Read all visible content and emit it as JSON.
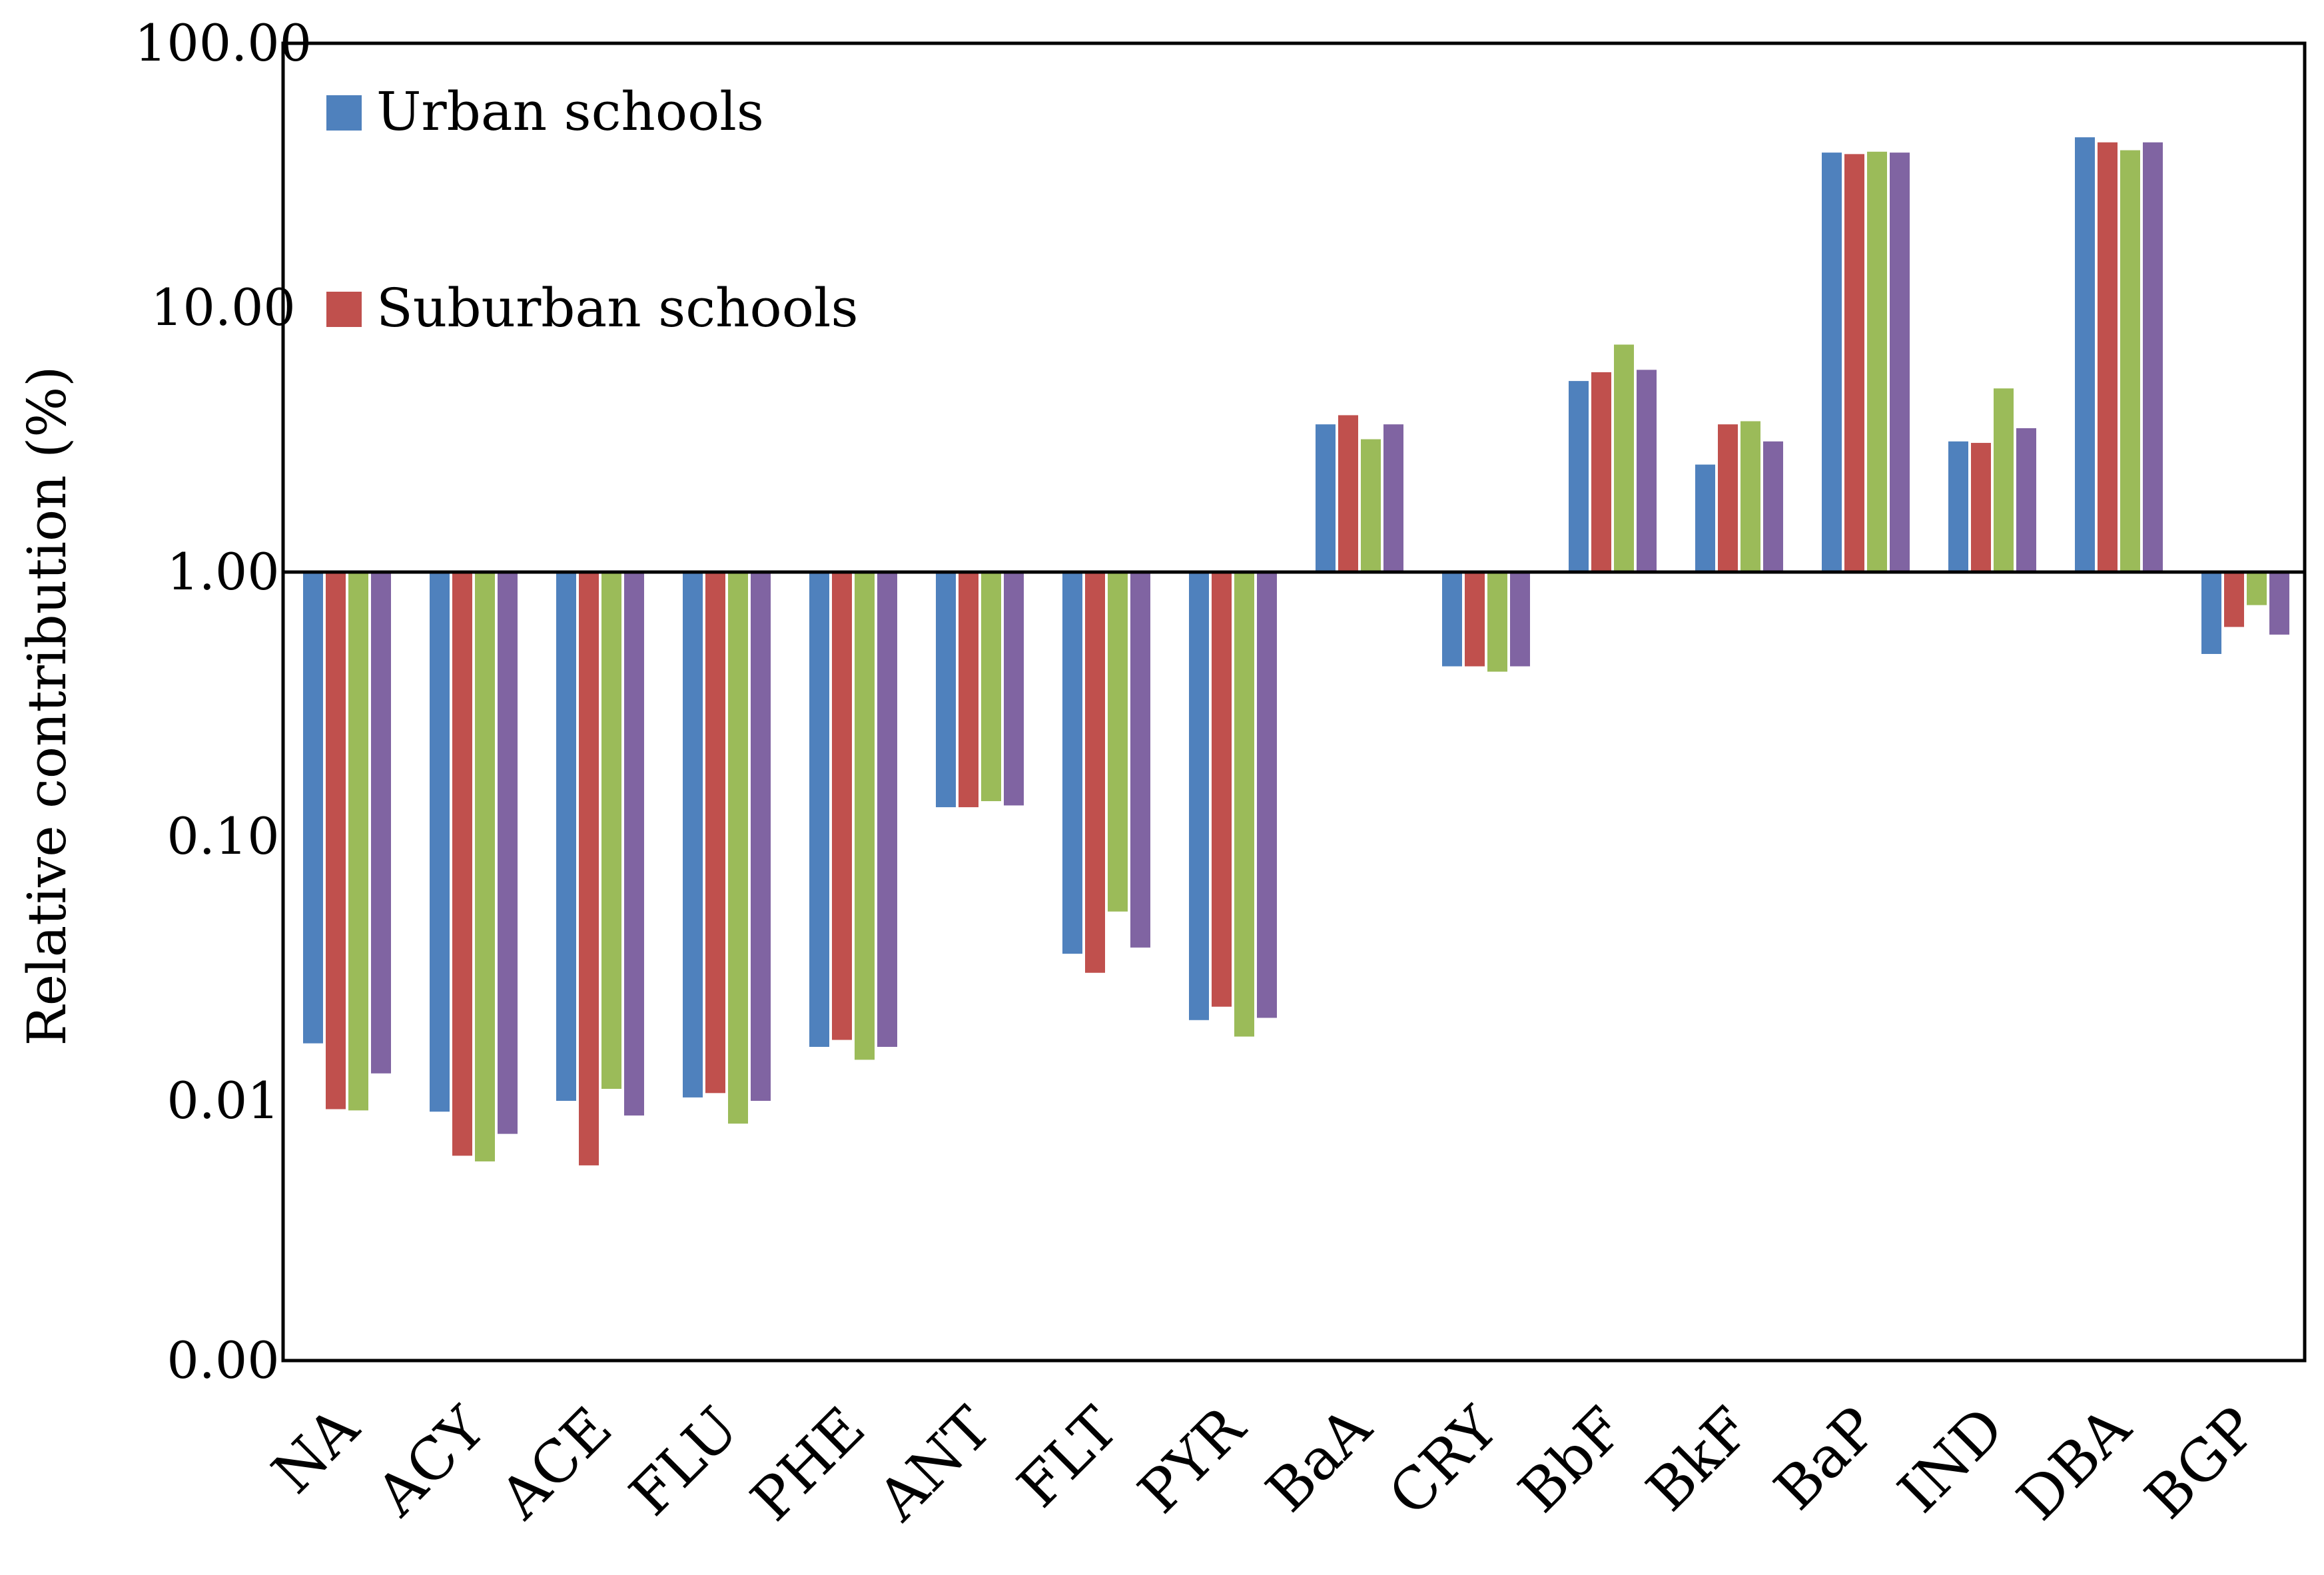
{
  "chart_data": {
    "type": "bar",
    "title": "",
    "xlabel": "",
    "ylabel": "Relative contribution (%)",
    "yscale": "log",
    "ylim": [
      0.001,
      100
    ],
    "baseline": 1,
    "yticks": [
      {
        "value": 100,
        "label": "100.00"
      },
      {
        "value": 10,
        "label": "10.00"
      },
      {
        "value": 1,
        "label": "1.00"
      },
      {
        "value": 0.1,
        "label": "0.10"
      },
      {
        "value": 0.01,
        "label": "0.01"
      },
      {
        "value": 0.001,
        "label": "0.00"
      }
    ],
    "categories": [
      "NA",
      "ACY",
      "ACE",
      "FLU",
      "PHE",
      "ANT",
      "FLT",
      "PYR",
      "BaA",
      "CRY",
      "BbF",
      "BkF",
      "BaP",
      "IND",
      "DBA",
      "BGP"
    ],
    "series": [
      {
        "name": "Urban schools",
        "color": "#4f81bd",
        "values": [
          0.0165,
          0.0091,
          0.01,
          0.0103,
          0.016,
          0.129,
          0.036,
          0.0202,
          3.62,
          0.44,
          5.28,
          2.55,
          38.6,
          3.12,
          44.1,
          0.49
        ]
      },
      {
        "name": "Suburban schools",
        "color": "#c0504d",
        "values": [
          0.0093,
          0.0062,
          0.0057,
          0.0107,
          0.017,
          0.129,
          0.0305,
          0.0227,
          3.92,
          0.44,
          5.7,
          3.62,
          38.1,
          3.08,
          42.2,
          0.62
        ]
      },
      {
        "name": "",
        "color": "#9bbb59",
        "values": [
          0.0092,
          0.0059,
          0.0111,
          0.0082,
          0.0143,
          0.136,
          0.052,
          0.0175,
          3.18,
          0.42,
          7.25,
          3.72,
          38.9,
          4.95,
          39.4,
          0.75
        ]
      },
      {
        "name": "",
        "color": "#8064a2",
        "values": [
          0.0127,
          0.0075,
          0.0088,
          0.01,
          0.016,
          0.131,
          0.038,
          0.0206,
          3.62,
          0.44,
          5.82,
          3.12,
          38.6,
          3.5,
          42.2,
          0.58
        ]
      }
    ],
    "legend": [
      {
        "label": "Urban schools",
        "color": "#4f81bd"
      },
      {
        "label": "Suburban schools",
        "color": "#c0504d"
      }
    ],
    "legend_position": "top-left"
  }
}
